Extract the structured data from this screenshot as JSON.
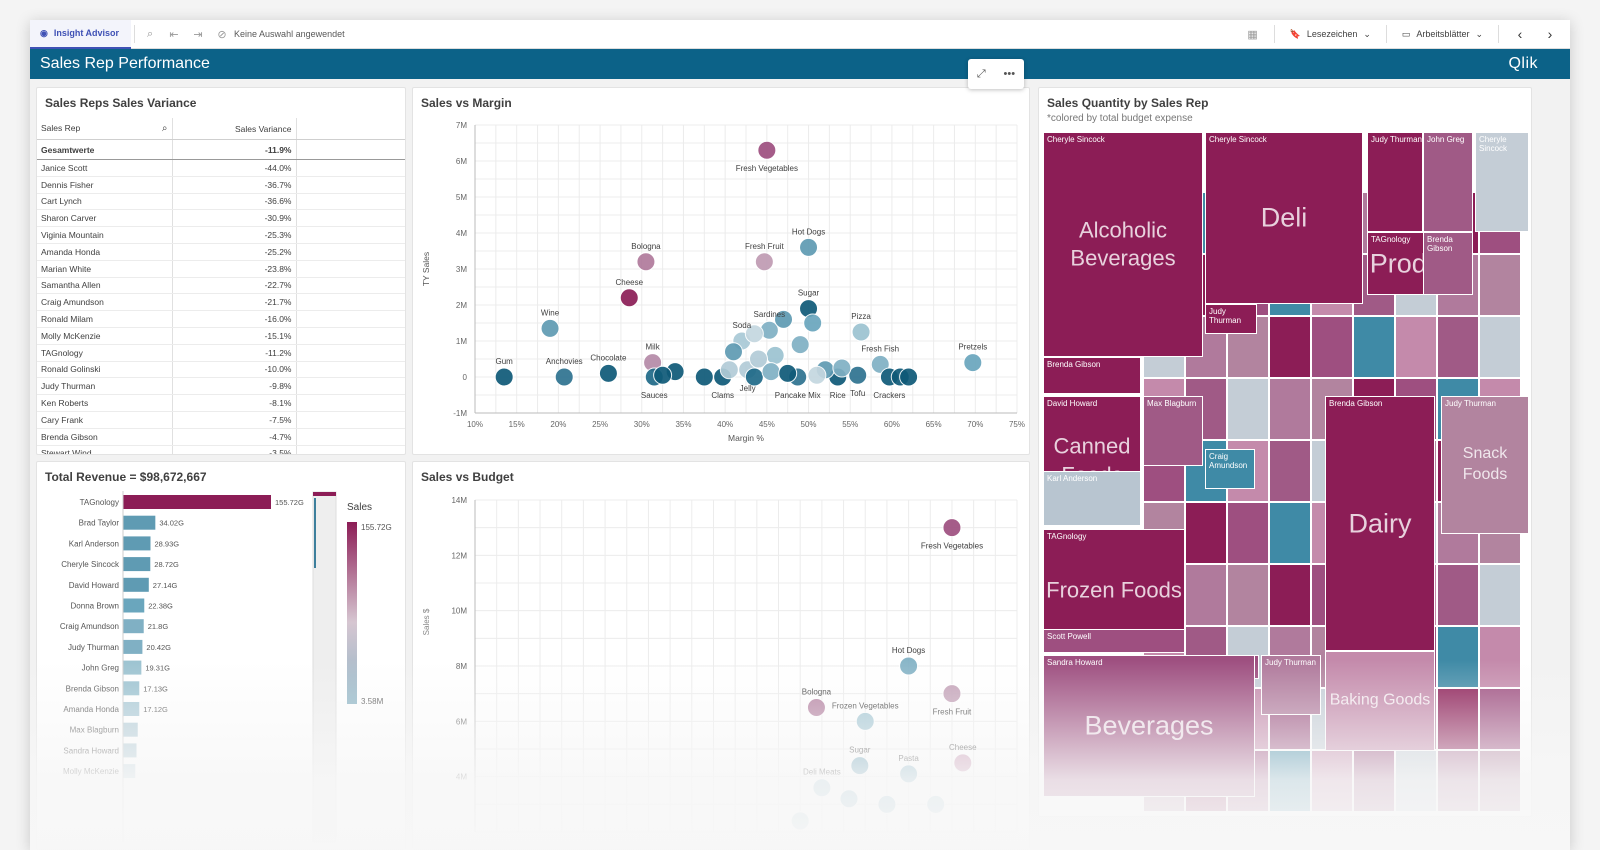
{
  "toolbar": {
    "insight_advisor": "Insight Advisor",
    "selection_status": "Keine Auswahl angewendet",
    "bookmarks": "Lesezeichen",
    "sheets": "Arbeitsblätter"
  },
  "app": {
    "title": "Sales Rep Performance",
    "logo": "Qlik"
  },
  "variance": {
    "title": "Sales Reps Sales Variance",
    "col_rep": "Sales Rep",
    "col_var": "Sales Variance",
    "total_label": "Gesamtwerte",
    "total_value": "-11.9%",
    "rows": [
      {
        "rep": "Janice Scott",
        "value": "-44.0%"
      },
      {
        "rep": "Dennis Fisher",
        "value": "-36.7%"
      },
      {
        "rep": "Cart Lynch",
        "value": "-36.6%"
      },
      {
        "rep": "Sharon Carver",
        "value": "-30.9%"
      },
      {
        "rep": "Viginia Mountain",
        "value": "-25.3%"
      },
      {
        "rep": "Amanda Honda",
        "value": "-25.2%"
      },
      {
        "rep": "Marian White",
        "value": "-23.8%"
      },
      {
        "rep": "Samantha Allen",
        "value": "-22.7%"
      },
      {
        "rep": "Craig Amundson",
        "value": "-21.7%"
      },
      {
        "rep": "Ronald Milam",
        "value": "-16.0%"
      },
      {
        "rep": "Molly McKenzie",
        "value": "-15.1%"
      },
      {
        "rep": "TAGnology",
        "value": "-11.2%"
      },
      {
        "rep": "Ronald Golinski",
        "value": "-10.0%"
      },
      {
        "rep": "Judy Thurman",
        "value": "-9.8%"
      },
      {
        "rep": "Ken Roberts",
        "value": "-8.1%"
      },
      {
        "rep": "Cary Frank",
        "value": "-7.5%"
      },
      {
        "rep": "Brenda Gibson",
        "value": "-4.7%"
      },
      {
        "rep": "Stewart Wind",
        "value": "-3.5%"
      }
    ]
  },
  "chart_data": [
    {
      "type": "scatter",
      "title": "Sales vs Margin",
      "xlabel": "Margin %",
      "ylabel": "TY Sales",
      "xlim": [
        10,
        75
      ],
      "ylim": [
        -1,
        7
      ],
      "x_ticks": [
        "10%",
        "15%",
        "20%",
        "25%",
        "30%",
        "35%",
        "40%",
        "45%",
        "50%",
        "55%",
        "60%",
        "65%",
        "70%",
        "75%"
      ],
      "y_ticks": [
        "-1M",
        "0",
        "1M",
        "2M",
        "3M",
        "4M",
        "5M",
        "6M",
        "7M"
      ],
      "points": [
        {
          "label": "Fresh Vegetables",
          "x": 45,
          "y": 6.3,
          "c": "#9e4f80"
        },
        {
          "label": "Hot Dogs",
          "x": 50,
          "y": 3.6,
          "c": "#5f9bb3"
        },
        {
          "label": "Bologna",
          "x": 30.5,
          "y": 3.2,
          "c": "#b07a9c"
        },
        {
          "label": "Fresh Fruit",
          "x": 44.7,
          "y": 3.2,
          "c": "#bf9bb3"
        },
        {
          "label": "Cheese",
          "x": 28.5,
          "y": 2.2,
          "c": "#8c1d56"
        },
        {
          "label": "Sugar",
          "x": 50,
          "y": 1.9,
          "c": "#0f5a78"
        },
        {
          "label": "Wine",
          "x": 19,
          "y": 1.35,
          "c": "#5f9bb3"
        },
        {
          "label": "Pizza",
          "x": 56.3,
          "y": 1.25,
          "c": "#9cc3d1"
        },
        {
          "label": "Sardines",
          "x": 45.3,
          "y": 1.3,
          "c": "#80b0c4"
        },
        {
          "label": "Soda",
          "x": 42,
          "y": 1.0,
          "c": "#a9c9d6"
        },
        {
          "label": "Milk",
          "x": 31.3,
          "y": 0.4,
          "c": "#b58aa8"
        },
        {
          "label": "Pretzels",
          "x": 69.7,
          "y": 0.4,
          "c": "#6aa6bd"
        },
        {
          "label": "Gum",
          "x": 13.5,
          "y": 0.0,
          "c": "#0f5a78"
        },
        {
          "label": "Anchovies",
          "x": 20.7,
          "y": 0.0,
          "c": "#2e7390"
        },
        {
          "label": "Chocolate",
          "x": 26,
          "y": 0.1,
          "c": "#0f5a78"
        },
        {
          "label": "Sauces",
          "x": 31.5,
          "y": 0.0,
          "c": "#1f6a88"
        },
        {
          "label": "Clams",
          "x": 39.7,
          "y": 0.0,
          "c": "#0f5a78"
        },
        {
          "label": "Jelly",
          "x": 42.7,
          "y": 0.2,
          "c": "#b2ccd7"
        },
        {
          "label": "Pancake Mix",
          "x": 48.7,
          "y": 0.0,
          "c": "#2e7390"
        },
        {
          "label": "Rice",
          "x": 53.5,
          "y": 0.0,
          "c": "#0f5a78"
        },
        {
          "label": "Tofu",
          "x": 55.9,
          "y": 0.05,
          "c": "#2e7390"
        },
        {
          "label": "Fresh Fish",
          "x": 58.6,
          "y": 0.35,
          "c": "#80b0c4"
        },
        {
          "label": "Crackers",
          "x": 59.7,
          "y": 0.0,
          "c": "#0f5a78"
        },
        {
          "label": "",
          "x": 47,
          "y": 1.6,
          "c": "#5f9bb3"
        },
        {
          "label": "",
          "x": 50.5,
          "y": 1.5,
          "c": "#6aa6bd"
        },
        {
          "label": "",
          "x": 43.5,
          "y": 1.2,
          "c": "#c4d7e0"
        },
        {
          "label": "",
          "x": 49,
          "y": 0.9,
          "c": "#80b0c4"
        },
        {
          "label": "",
          "x": 46,
          "y": 0.6,
          "c": "#9cc3d1"
        },
        {
          "label": "",
          "x": 41,
          "y": 0.7,
          "c": "#5f9bb3"
        },
        {
          "label": "",
          "x": 44,
          "y": 0.5,
          "c": "#b2ccd7"
        },
        {
          "label": "",
          "x": 34,
          "y": 0.15,
          "c": "#0f5a78"
        },
        {
          "label": "",
          "x": 37.5,
          "y": 0.0,
          "c": "#0f5a78"
        },
        {
          "label": "",
          "x": 43.5,
          "y": 0.0,
          "c": "#1f6a88"
        },
        {
          "label": "",
          "x": 45.5,
          "y": 0.15,
          "c": "#80b0c4"
        },
        {
          "label": "",
          "x": 47.5,
          "y": 0.1,
          "c": "#0f5a78"
        },
        {
          "label": "",
          "x": 52,
          "y": 0.2,
          "c": "#5f9bb3"
        },
        {
          "label": "",
          "x": 54,
          "y": 0.25,
          "c": "#80b0c4"
        },
        {
          "label": "",
          "x": 61,
          "y": 0.0,
          "c": "#0f5a78"
        },
        {
          "label": "",
          "x": 62,
          "y": 0.0,
          "c": "#0f5a78"
        },
        {
          "label": "",
          "x": 32.5,
          "y": 0.05,
          "c": "#0f5a78"
        },
        {
          "label": "",
          "x": 40.5,
          "y": 0.2,
          "c": "#b2ccd7"
        },
        {
          "label": "",
          "x": 51,
          "y": 0.05,
          "c": "#c4d7e0"
        }
      ]
    },
    {
      "type": "bar",
      "title": "Total Revenue = $98,672,667",
      "legend_title": "Sales",
      "legend_max": "155.72G",
      "legend_min": "3.58M",
      "categories": [
        "TAGnology",
        "Brad Taylor",
        "Karl Anderson",
        "Cheryle Sincock",
        "David Howard",
        "Donna Brown",
        "Craig Amundson",
        "Judy Thurman",
        "John Greg",
        "Brenda Gibson",
        "Amanda Honda",
        "Max Blagburn",
        "Sandra Howard",
        "Molly McKenzie"
      ],
      "values": [
        155.72,
        34.02,
        28.93,
        28.72,
        27.14,
        22.38,
        21.8,
        20.42,
        19.31,
        17.13,
        17.12,
        15.5,
        14.2,
        12.9
      ],
      "value_labels": [
        "155.72G",
        "34.02G",
        "28.93G",
        "28.72G",
        "27.14G",
        "22.38G",
        "21.8G",
        "20.42G",
        "19.31G",
        "17.13G",
        "17.12G",
        "",
        "",
        ""
      ],
      "colors": [
        "#8c1d56",
        "#5f9bb3",
        "#5f9bb3",
        "#5f9bb3",
        "#5f9bb3",
        "#6aa6bd",
        "#80b0c4",
        "#80b0c4",
        "#9cc3d1",
        "#9cc3d1",
        "#a9c9d6",
        "#b2ccd7",
        "#b2ccd7",
        "#c4d7e0"
      ]
    },
    {
      "type": "scatter",
      "title": "Sales vs Budget",
      "ylabel": "Sales $",
      "ylim": [
        0,
        14
      ],
      "y_ticks": [
        "4M",
        "6M",
        "8M",
        "10M",
        "12M",
        "14M"
      ],
      "xlim": [
        0,
        100
      ],
      "points": [
        {
          "label": "Fresh Vegetables",
          "x": 88,
          "y": 13.0,
          "c": "#9e4f80"
        },
        {
          "label": "Hot Dogs",
          "x": 80,
          "y": 8.0,
          "c": "#80b0c4"
        },
        {
          "label": "Fresh Fruit",
          "x": 88,
          "y": 7.0,
          "c": "#bf9bb3"
        },
        {
          "label": "Bologna",
          "x": 63,
          "y": 6.5,
          "c": "#b07a9c"
        },
        {
          "label": "Frozen Vegetables",
          "x": 72,
          "y": 6.0,
          "c": "#9cc3d1"
        },
        {
          "label": "Sugar",
          "x": 71,
          "y": 4.4,
          "c": "#5f9bb3"
        },
        {
          "label": "Pasta",
          "x": 80,
          "y": 4.1,
          "c": "#80b0c4"
        },
        {
          "label": "Cheese",
          "x": 90,
          "y": 4.5,
          "c": "#c48aab"
        },
        {
          "label": "Deli Meats",
          "x": 64,
          "y": 3.6,
          "c": "#9cc3d1"
        },
        {
          "label": "",
          "x": 69,
          "y": 3.2,
          "c": "#80b0c4"
        },
        {
          "label": "",
          "x": 76,
          "y": 3.0,
          "c": "#80b0c4"
        },
        {
          "label": "",
          "x": 85,
          "y": 3.0,
          "c": "#9cc3d1"
        },
        {
          "label": "",
          "x": 60,
          "y": 2.4,
          "c": "#9cc3d1"
        }
      ]
    }
  ],
  "treemap": {
    "title": "Sales Quantity by Sales Rep",
    "subtitle": "*colored by total budget expense",
    "cells": [
      {
        "big": "Alcoholic Beverages",
        "label": "Cheryle Sincock",
        "c": "#8c1d56"
      },
      {
        "big": "Deli",
        "label": "Cheryle Sincock",
        "c": "#8c1d56"
      },
      {
        "big": "",
        "label": "Judy Thurman",
        "c": "#8c1d56"
      },
      {
        "big": "",
        "label": "John Greg",
        "c": "#a05a86"
      },
      {
        "big": "",
        "label": "Cheryle Sincock",
        "c": "#c4cdd6"
      },
      {
        "big": "Produce",
        "label": "TAGnology",
        "c": "#8c1d56"
      },
      {
        "big": "",
        "label": "Brenda Gibson",
        "c": "#a05a86"
      },
      {
        "big": "",
        "label": "Brenda Gibson",
        "c": "#8c1d56"
      },
      {
        "big": "",
        "label": "Judy Thurman",
        "c": "#8c1d56"
      },
      {
        "big": "Canned Foods",
        "label": "David Howard",
        "c": "#8c1d56"
      },
      {
        "big": "",
        "label": "Max Blagburn",
        "c": "#a05a86"
      },
      {
        "big": "",
        "label": "Karl Anderson",
        "c": "#b8c5d0"
      },
      {
        "big": "",
        "label": "Craig Amundson",
        "c": "#3f8aa6"
      },
      {
        "big": "Dairy",
        "label": "Brenda Gibson",
        "c": "#8c1d56"
      },
      {
        "big": "Snack Foods",
        "label": "Judy Thurman",
        "c": "#b2849f"
      },
      {
        "big": "Frozen Foods",
        "label": "TAGnology",
        "c": "#8c1d56"
      },
      {
        "big": "",
        "label": "Scott Powell",
        "c": "#9e4f80"
      },
      {
        "big": "",
        "label": "Judy Thurman",
        "c": "#9e4f80"
      },
      {
        "big": "Beverages",
        "label": "Sandra Howard",
        "c": "#9e4f80"
      },
      {
        "big": "",
        "label": "Judy Thurman",
        "c": "#b07a9c"
      },
      {
        "big": "Baking Goods",
        "label": "",
        "c": "#c48aab"
      }
    ]
  }
}
